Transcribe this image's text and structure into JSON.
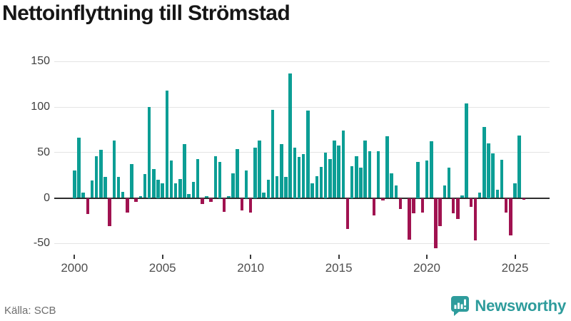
{
  "title": "Nettoinflyttning till Strömstad",
  "source": {
    "label": "Källa: SCB"
  },
  "branding": {
    "name": "Newsworthy",
    "logo_icon": "newsworthy-speech-bubble-barchart-icon"
  },
  "colors": {
    "positive_bar": "#0c9e95",
    "negative_bar": "#a01250",
    "gridline": "#e4e4e4",
    "zero_line": "#2e2e2e",
    "brand_teal": "#2e9c9c",
    "title_text": "#161616",
    "axis_text": "#4f4f4f",
    "source_text": "#6e6e6e"
  },
  "chart_data": {
    "type": "bar",
    "title": "Nettoinflyttning till Strömstad",
    "x_unit": "quarter",
    "start": "2000-Q1",
    "end": "2025-Q3",
    "grid": true,
    "legend": false,
    "ylim": [
      -62,
      155
    ],
    "y_ticks": [
      150,
      100,
      50,
      0,
      -50
    ],
    "y_tick_labels": [
      "150",
      "100",
      "50",
      "0",
      "-50"
    ],
    "x_tick_years": [
      2000,
      2005,
      2010,
      2015,
      2020,
      2025
    ],
    "x_tick_labels": [
      "2000",
      "2005",
      "2010",
      "2015",
      "2020",
      "2025"
    ],
    "series": [
      {
        "year": 2000,
        "q": [
          30,
          66,
          6,
          -18
        ]
      },
      {
        "year": 2001,
        "q": [
          19,
          46,
          53,
          23
        ]
      },
      {
        "year": 2002,
        "q": [
          -31,
          63,
          23,
          7
        ]
      },
      {
        "year": 2003,
        "q": [
          -16,
          37,
          -4,
          2
        ]
      },
      {
        "year": 2004,
        "q": [
          26,
          100,
          32,
          20
        ]
      },
      {
        "year": 2005,
        "q": [
          16,
          118,
          41,
          16
        ]
      },
      {
        "year": 2006,
        "q": [
          21,
          59,
          4,
          18
        ]
      },
      {
        "year": 2007,
        "q": [
          43,
          -7,
          2,
          -4
        ]
      },
      {
        "year": 2008,
        "q": [
          46,
          40,
          -15,
          2
        ]
      },
      {
        "year": 2009,
        "q": [
          27,
          54,
          -14,
          30
        ]
      },
      {
        "year": 2010,
        "q": [
          -16,
          55,
          63,
          6
        ]
      },
      {
        "year": 2011,
        "q": [
          20,
          97,
          24,
          59
        ]
      },
      {
        "year": 2012,
        "q": [
          23,
          137,
          55,
          45
        ]
      },
      {
        "year": 2013,
        "q": [
          48,
          96,
          16,
          24
        ]
      },
      {
        "year": 2014,
        "q": [
          34,
          50,
          43,
          63
        ]
      },
      {
        "year": 2015,
        "q": [
          58,
          74,
          -34,
          35
        ]
      },
      {
        "year": 2016,
        "q": [
          46,
          33,
          63,
          51
        ]
      },
      {
        "year": 2017,
        "q": [
          -19,
          51,
          -3,
          68
        ]
      },
      {
        "year": 2018,
        "q": [
          27,
          14,
          -12,
          0
        ]
      },
      {
        "year": 2019,
        "q": [
          -46,
          -17,
          40,
          -16
        ]
      },
      {
        "year": 2020,
        "q": [
          41,
          62,
          -55,
          -31
        ]
      },
      {
        "year": 2021,
        "q": [
          14,
          33,
          -17,
          -23
        ]
      },
      {
        "year": 2022,
        "q": [
          3,
          104,
          -10,
          -47
        ]
      },
      {
        "year": 2023,
        "q": [
          6,
          78,
          60,
          49
        ]
      },
      {
        "year": 2024,
        "q": [
          9,
          42,
          -16,
          -41
        ]
      },
      {
        "year": 2025,
        "q": [
          16,
          69,
          -2
        ]
      }
    ]
  }
}
